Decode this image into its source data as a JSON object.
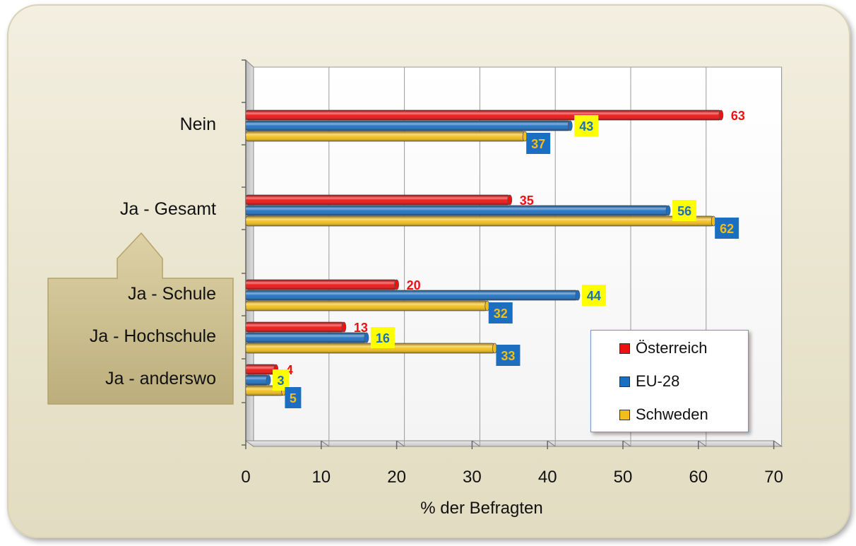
{
  "chart_data": {
    "type": "bar",
    "orientation": "horizontal",
    "title": "",
    "xlabel": "%  der Befragten",
    "ylabel": "",
    "xlim": [
      0,
      70
    ],
    "xticks": [
      "0",
      "10",
      "20",
      "30",
      "40",
      "50",
      "60",
      "70"
    ],
    "grid": true,
    "legend_position": "bottom-right",
    "categories": [
      "Nein",
      "Ja  - Gesamt",
      "Ja - Schule",
      "Ja - Hochschule",
      "Ja - anderswo"
    ],
    "series": [
      {
        "name": "Österreich",
        "color": "#ee1111",
        "values": [
          63,
          35,
          20,
          13,
          4
        ]
      },
      {
        "name": "EU-28",
        "color": "#1c6fc0",
        "values": [
          43,
          56,
          44,
          16,
          3
        ]
      },
      {
        "name": "Schweden",
        "color": "#f2be1a",
        "values": [
          37,
          62,
          32,
          33,
          5
        ]
      }
    ],
    "value_labels": [
      [
        "63",
        "43",
        "37"
      ],
      [
        "35",
        "56",
        "62"
      ],
      [
        "20",
        "44",
        "32"
      ],
      [
        "13",
        "16",
        "33"
      ],
      [
        "4",
        "3",
        "5"
      ]
    ]
  }
}
